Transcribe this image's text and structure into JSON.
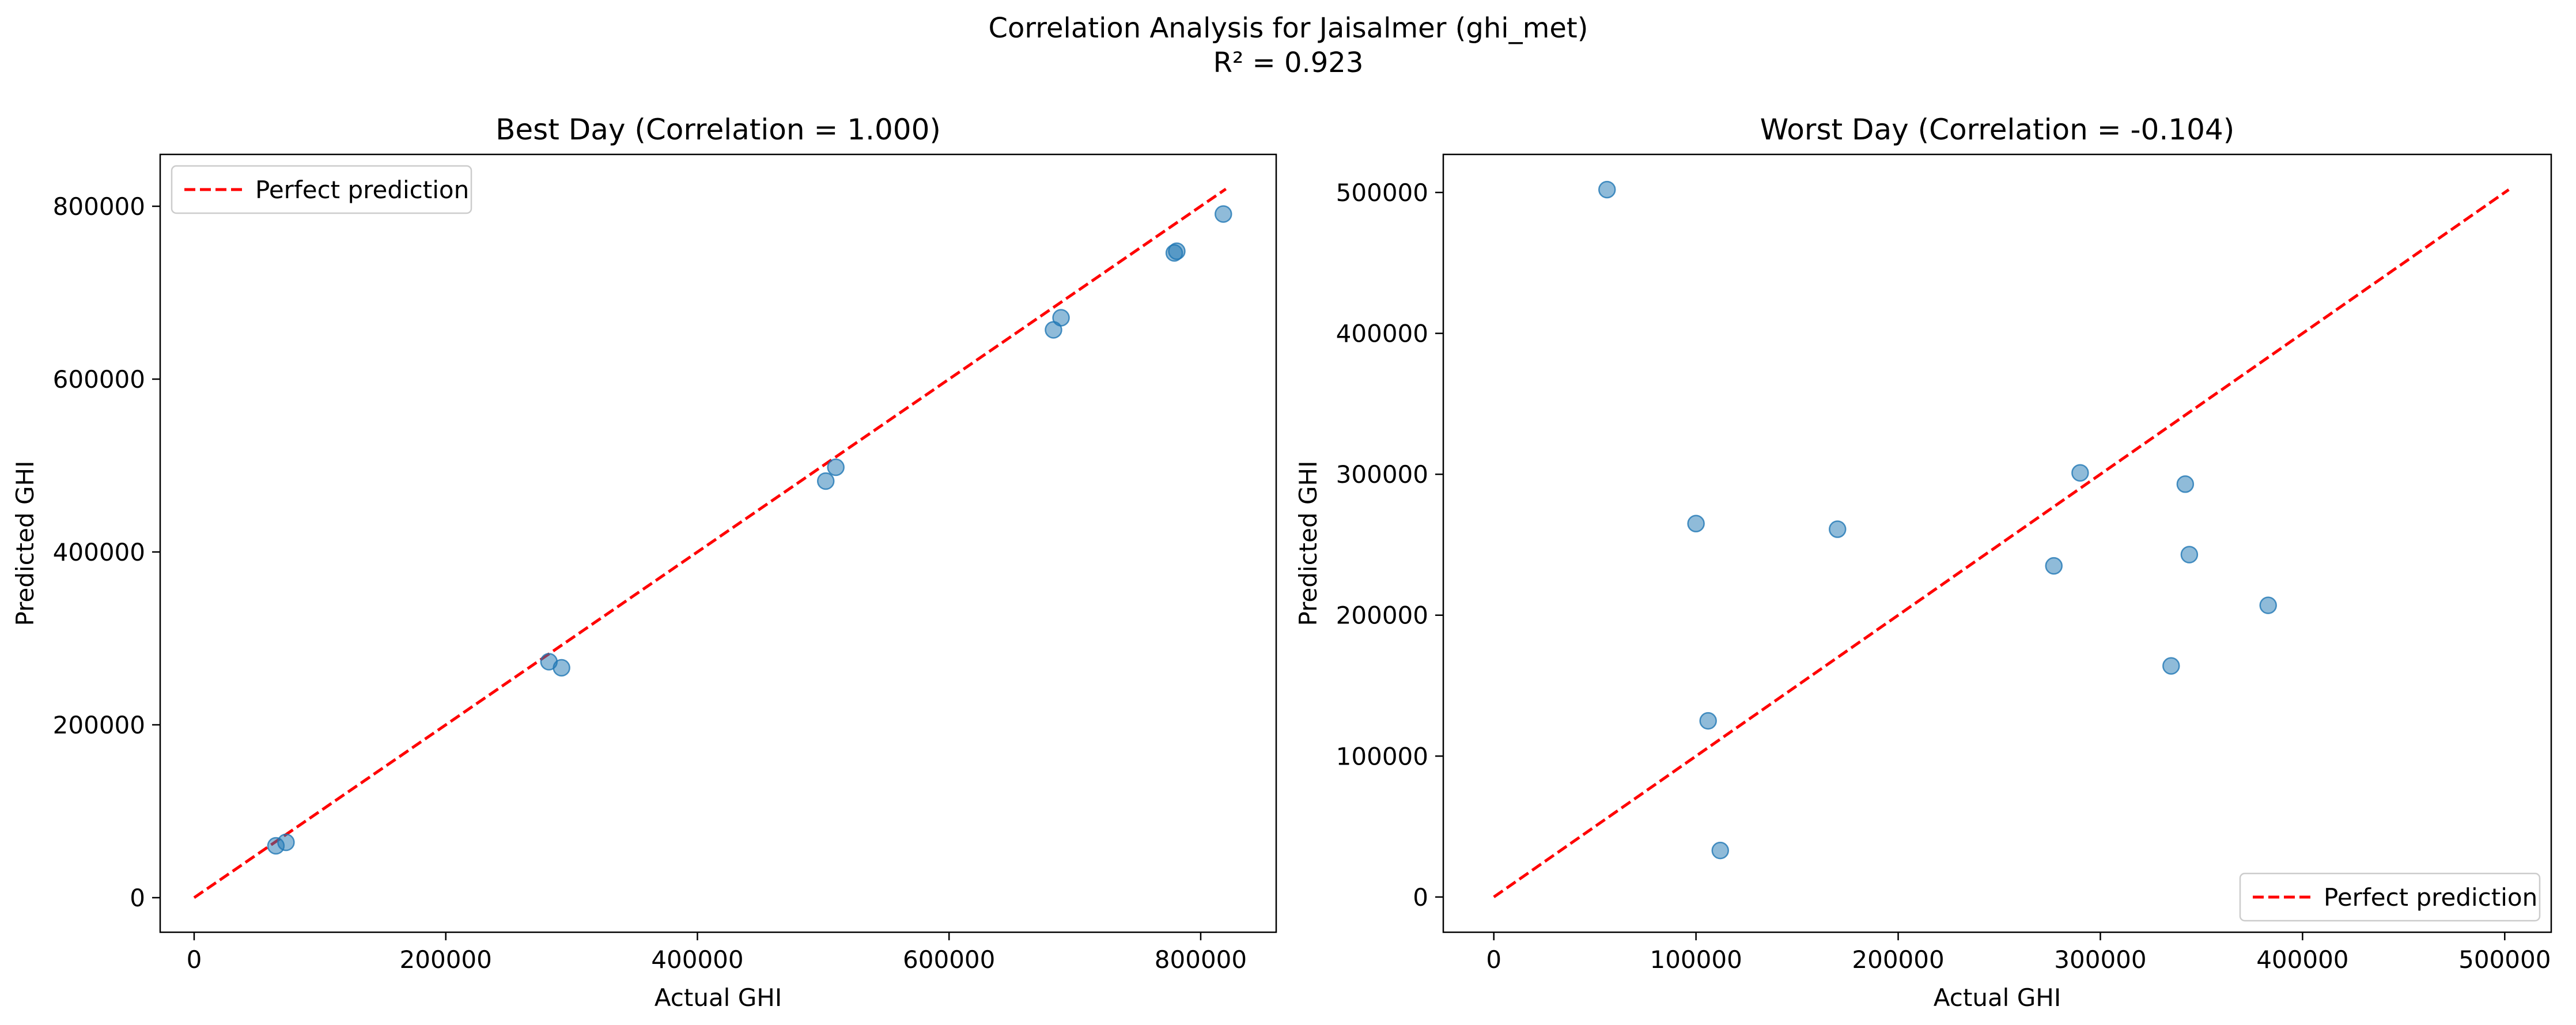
{
  "figure": {
    "suptitle_line1": "Correlation Analysis for Jaisalmer (ghi_met)",
    "suptitle_line2": "R² = 0.923"
  },
  "chart_data": [
    {
      "type": "scatter",
      "title": "Best Day (Correlation = 1.000)",
      "xlabel": "Actual GHI",
      "ylabel": "Predicted GHI",
      "xlim": [
        -27000,
        860000
      ],
      "ylim": [
        -40000,
        860000
      ],
      "xticks": [
        0,
        200000,
        400000,
        600000,
        800000
      ],
      "yticks": [
        0,
        200000,
        400000,
        600000,
        800000
      ],
      "xtick_labels": [
        "0",
        "200000",
        "400000",
        "600000",
        "800000"
      ],
      "ytick_labels": [
        "0",
        "200000",
        "400000",
        "600000",
        "800000"
      ],
      "grid": false,
      "legend": {
        "position": "top-left",
        "entries": [
          "Perfect prediction"
        ]
      },
      "reference_line": {
        "name": "Perfect prediction",
        "x": [
          0,
          820000
        ],
        "y": [
          0,
          820000
        ],
        "style": "dashed",
        "color": "#ff0000"
      },
      "points": [
        {
          "x": 65000,
          "y": 60000
        },
        {
          "x": 73000,
          "y": 64000
        },
        {
          "x": 282000,
          "y": 273000
        },
        {
          "x": 292000,
          "y": 266000
        },
        {
          "x": 502000,
          "y": 482000
        },
        {
          "x": 510000,
          "y": 498000
        },
        {
          "x": 683000,
          "y": 657000
        },
        {
          "x": 689000,
          "y": 671000
        },
        {
          "x": 779000,
          "y": 746000
        },
        {
          "x": 781000,
          "y": 748000
        },
        {
          "x": 818000,
          "y": 791000
        }
      ],
      "point_color": "#1f77b4"
    },
    {
      "type": "scatter",
      "title": "Worst Day (Correlation = -0.104)",
      "xlabel": "Actual GHI",
      "ylabel": "Predicted GHI",
      "xlim": [
        -25000,
        523000
      ],
      "ylim": [
        -25000,
        527000
      ],
      "xticks": [
        0,
        100000,
        200000,
        300000,
        400000,
        500000
      ],
      "yticks": [
        0,
        100000,
        200000,
        300000,
        400000,
        500000
      ],
      "xtick_labels": [
        "0",
        "100000",
        "200000",
        "300000",
        "400000",
        "500000"
      ],
      "ytick_labels": [
        "0",
        "100000",
        "200000",
        "300000",
        "400000",
        "500000"
      ],
      "grid": false,
      "legend": {
        "position": "bottom-right",
        "entries": [
          "Perfect prediction"
        ]
      },
      "reference_line": {
        "name": "Perfect prediction",
        "x": [
          0,
          502000
        ],
        "y": [
          0,
          502000
        ],
        "style": "dashed",
        "color": "#ff0000"
      },
      "points": [
        {
          "x": 56000,
          "y": 502000
        },
        {
          "x": 100000,
          "y": 265000
        },
        {
          "x": 106000,
          "y": 125000
        },
        {
          "x": 112000,
          "y": 33000
        },
        {
          "x": 170000,
          "y": 261000
        },
        {
          "x": 277000,
          "y": 235000
        },
        {
          "x": 290000,
          "y": 301000
        },
        {
          "x": 335000,
          "y": 164000
        },
        {
          "x": 342000,
          "y": 293000
        },
        {
          "x": 344000,
          "y": 243000
        },
        {
          "x": 383000,
          "y": 207000
        }
      ],
      "point_color": "#1f77b4"
    }
  ]
}
